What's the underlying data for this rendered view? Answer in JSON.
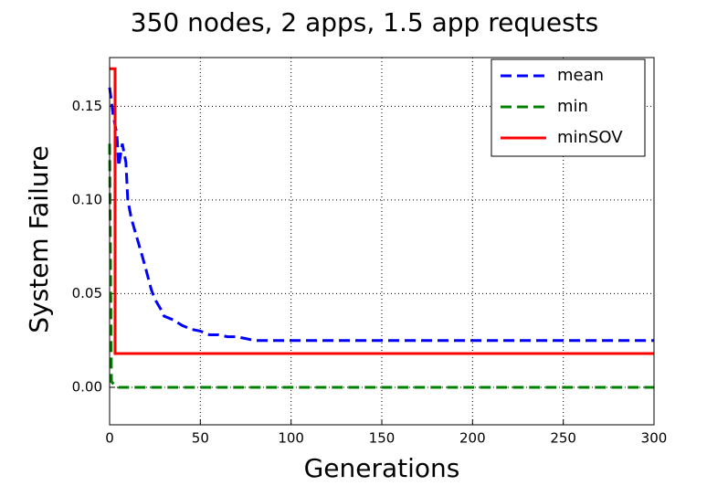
{
  "chart_data": {
    "type": "line",
    "title": "350 nodes, 2 apps, 1.5 app requests",
    "x_label": "Generations",
    "y_label": "System Failure",
    "xlim": [
      0,
      300
    ],
    "xticks": [
      0,
      50,
      100,
      150,
      200,
      250,
      300
    ],
    "ylim": [
      -0.02,
      0.176
    ],
    "yticks": [
      {
        "value": 0,
        "label": "0.00"
      },
      {
        "value": 0.05,
        "label": "0.05"
      },
      {
        "value": 0.1,
        "label": "0.10"
      },
      {
        "value": 0.15,
        "label": "0.15"
      }
    ],
    "grid": true,
    "legend": "upper right",
    "series": [
      {
        "name": "mean",
        "color": "#0000ff",
        "dash": "dashed",
        "x": [
          0,
          2,
          4,
          5,
          7,
          9,
          10,
          12,
          15,
          18,
          20,
          23,
          25,
          28,
          30,
          35,
          40,
          45,
          50,
          55,
          60,
          65,
          70,
          75,
          80,
          300
        ],
        "values": [
          0.16,
          0.145,
          0.135,
          0.118,
          0.13,
          0.12,
          0.1,
          0.09,
          0.08,
          0.07,
          0.063,
          0.052,
          0.047,
          0.042,
          0.038,
          0.036,
          0.033,
          0.031,
          0.03,
          0.028,
          0.028,
          0.027,
          0.027,
          0.026,
          0.025,
          0.025
        ]
      },
      {
        "name": "min",
        "color": "#008000",
        "dash": "dashed",
        "x": [
          0,
          1,
          3,
          5,
          300
        ],
        "values": [
          0.13,
          0.003,
          0.001,
          0,
          0
        ]
      },
      {
        "name": "minSOV",
        "color": "#ff0000",
        "dash": "solid",
        "x": [
          0,
          3,
          3,
          300
        ],
        "values": [
          0.17,
          0.17,
          0.018,
          0.018
        ]
      }
    ]
  }
}
